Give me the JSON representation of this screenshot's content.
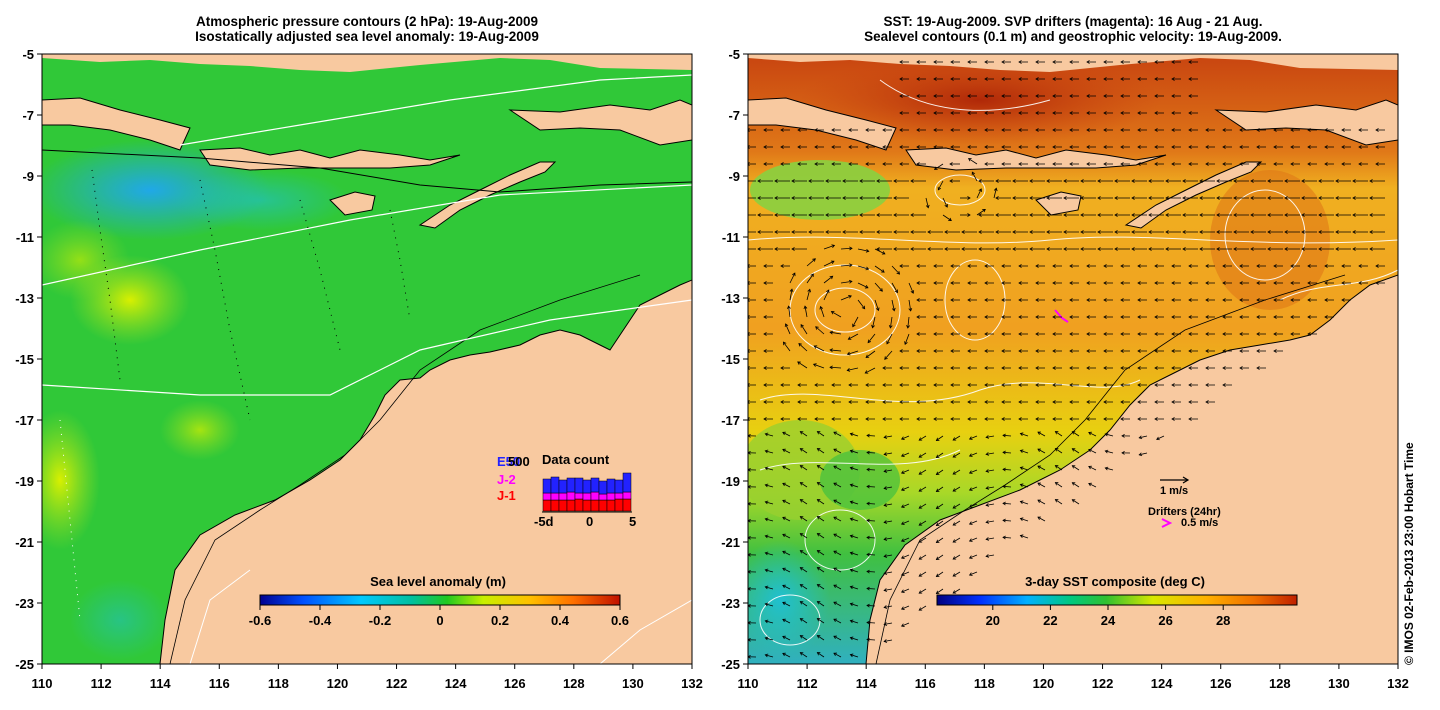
{
  "left_panel": {
    "title_line1": "Atmospheric pressure contours (2 hPa): 19-Aug-2009",
    "title_line2": "Isostatically adjusted sea level anomaly: 19-Aug-2009",
    "colorbar_title": "Sea level anomaly (m)",
    "colorbar_ticks": [
      "-0.6",
      "-0.4",
      "-0.2",
      "0",
      "0.2",
      "0.4",
      "0.6"
    ],
    "inset": {
      "title": "Data count",
      "legend": [
        {
          "label": "E50",
          "color": "#2222ff"
        },
        {
          "label": "J-2",
          "color": "#ff00ff"
        },
        {
          "label": "J-1",
          "color": "#ff0000"
        }
      ],
      "overlay_label": "500",
      "x_ticks": [
        "-5d",
        "0",
        "5"
      ]
    }
  },
  "right_panel": {
    "title_line1": "SST: 19-Aug-2009. SVP drifters (magenta): 16 Aug - 21 Aug.",
    "title_line2": "Sealevel contours (0.1 m) and geostrophic velocity: 19-Aug-2009.",
    "colorbar_title": "3-day SST composite (deg C)",
    "colorbar_ticks": [
      "20",
      "22",
      "24",
      "26",
      "28"
    ],
    "velocity_key": "1 m/s",
    "drifters_key_title": "Drifters (24hr)",
    "drifters_key_value": "0.5 m/s"
  },
  "axes": {
    "y_ticks": [
      "-5",
      "-7",
      "-9",
      "-11",
      "-13",
      "-15",
      "-17",
      "-19",
      "-21",
      "-23",
      "-25"
    ],
    "x_ticks": [
      "110",
      "112",
      "114",
      "116",
      "118",
      "120",
      "122",
      "124",
      "126",
      "128",
      "130",
      "132"
    ]
  },
  "credit": "© IMOS 02-Feb-2013 23:00 Hobart Time",
  "colors": {
    "land": "#f8c9a0",
    "sla_ramp": [
      "#000090",
      "#0050ff",
      "#00c8ff",
      "#00c0a0",
      "#20c820",
      "#c8f000",
      "#ffc000",
      "#ff7000",
      "#c01000"
    ],
    "sst_ramp": [
      "#000080",
      "#0030ff",
      "#00b0ff",
      "#00c880",
      "#30c030",
      "#d8e800",
      "#ffb000",
      "#f07000",
      "#c02000"
    ]
  }
}
